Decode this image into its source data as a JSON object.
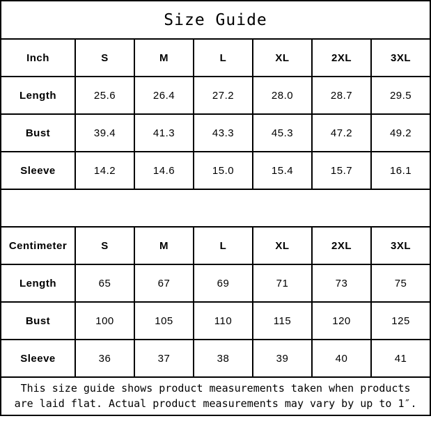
{
  "page": {
    "title": "Size Guide"
  },
  "inch_table": {
    "unit": "Inch",
    "sizes": [
      "S",
      "M",
      "L",
      "XL",
      "2XL",
      "3XL"
    ],
    "rows": [
      {
        "label": "Length",
        "values": [
          "25.6",
          "26.4",
          "27.2",
          "28.0",
          "28.7",
          "29.5"
        ]
      },
      {
        "label": "Bust",
        "values": [
          "39.4",
          "41.3",
          "43.3",
          "45.3",
          "47.2",
          "49.2"
        ]
      },
      {
        "label": "Sleeve",
        "values": [
          "14.2",
          "14.6",
          "15.0",
          "15.4",
          "15.7",
          "16.1"
        ]
      }
    ]
  },
  "cm_table": {
    "unit": "Centimeter",
    "sizes": [
      "S",
      "M",
      "L",
      "XL",
      "2XL",
      "3XL"
    ],
    "rows": [
      {
        "label": "Length",
        "values": [
          "65",
          "67",
          "69",
          "71",
          "73",
          "75"
        ]
      },
      {
        "label": "Bust",
        "values": [
          "100",
          "105",
          "110",
          "115",
          "120",
          "125"
        ]
      },
      {
        "label": "Sleeve",
        "values": [
          "36",
          "37",
          "38",
          "39",
          "40",
          "41"
        ]
      }
    ]
  },
  "footer": {
    "line1": "This size guide shows product measurements taken when products",
    "line2": "are laid flat. Actual product measurements may vary by up to 1″."
  },
  "colors": {
    "border": "#000000",
    "background": "#ffffff",
    "text": "#000000"
  }
}
